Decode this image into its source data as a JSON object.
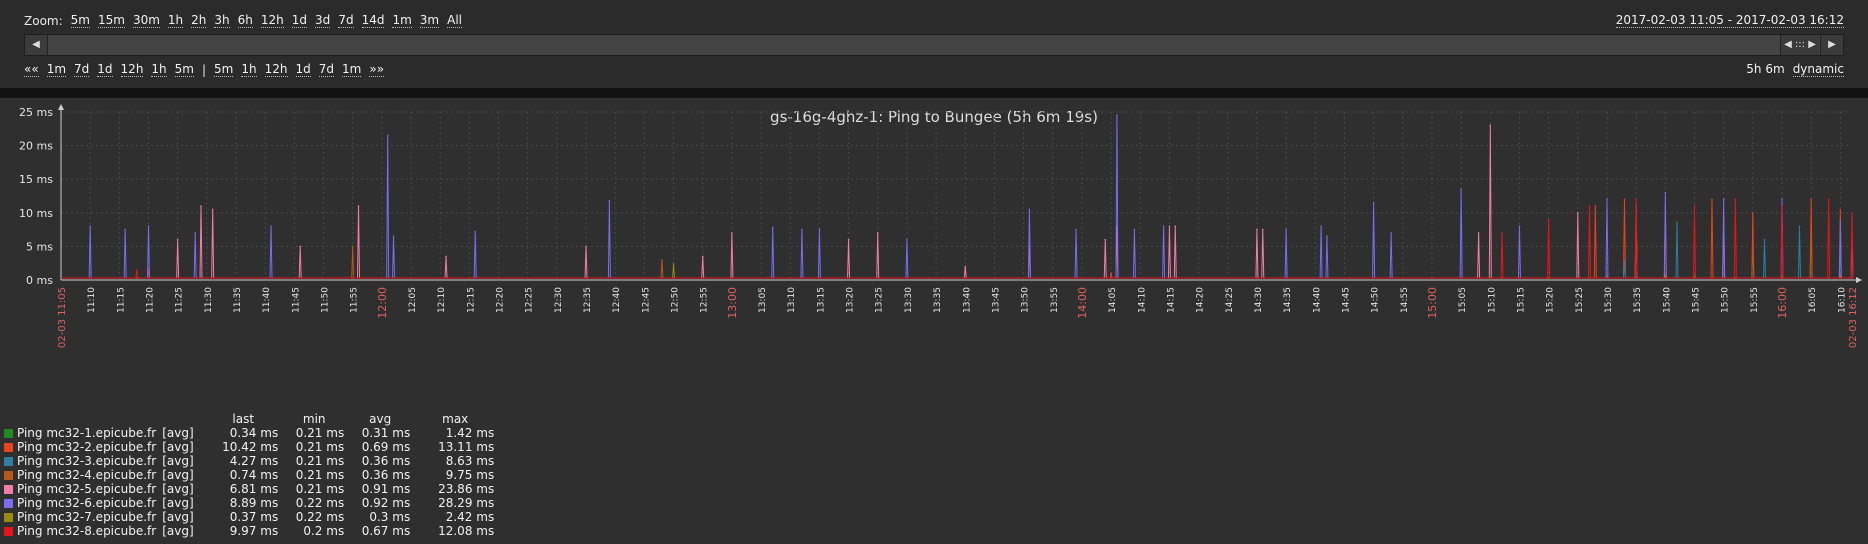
{
  "zoom": {
    "label": "Zoom:",
    "options": [
      "5m",
      "15m",
      "30m",
      "1h",
      "2h",
      "3h",
      "6h",
      "12h",
      "1d",
      "3d",
      "7d",
      "14d",
      "1m",
      "3m",
      "All"
    ]
  },
  "period_text": "2017-02-03 11:05 - 2017-02-03 16:12",
  "scroller": {
    "left_arrow": "◀",
    "right_arrow": "▶",
    "thumb": "◀ ::: ▶"
  },
  "nav": {
    "back_fast": "««",
    "back": [
      "1m",
      "7d",
      "1d",
      "12h",
      "1h",
      "5m"
    ],
    "separator": "|",
    "forward": [
      "5m",
      "1h",
      "12h",
      "1d",
      "7d",
      "1m"
    ],
    "forward_fast": "»»",
    "period_len": "5h 6m",
    "mode": "dynamic"
  },
  "colors": {
    "background": "#2f2f2f",
    "grid": "#4a4a4a",
    "axis_text": "#e6e6e6",
    "hour_text": "#e06060"
  },
  "chart_data": {
    "type": "line",
    "title": "gs-16g-4ghz-1: Ping to Bungee (5h 6m 19s)",
    "y_ticks": [
      "0 ms",
      "5 ms",
      "10 ms",
      "15 ms",
      "20 ms",
      "25 ms"
    ],
    "ylim": [
      0,
      25
    ],
    "x_ticks": [
      "11:10",
      "11:15",
      "11:20",
      "11:25",
      "11:30",
      "11:35",
      "11:40",
      "11:45",
      "11:50",
      "11:55",
      "12:00",
      "12:05",
      "12:10",
      "12:15",
      "12:20",
      "12:25",
      "12:30",
      "12:35",
      "12:40",
      "12:45",
      "12:50",
      "12:55",
      "13:00",
      "13:05",
      "13:10",
      "13:15",
      "13:20",
      "13:25",
      "13:30",
      "13:35",
      "13:40",
      "13:45",
      "13:50",
      "13:55",
      "14:00",
      "14:05",
      "14:10",
      "14:15",
      "14:20",
      "14:25",
      "14:30",
      "14:35",
      "14:40",
      "14:45",
      "14:50",
      "14:55",
      "15:00",
      "15:05",
      "15:10",
      "15:15",
      "15:20",
      "15:25",
      "15:30",
      "15:35",
      "15:40",
      "15:45",
      "15:50",
      "15:55",
      "16:00",
      "16:05",
      "16:10"
    ],
    "x_start_label": "02-03 11:05",
    "x_end_label": "02-03 16:12",
    "grid": true,
    "series": [
      {
        "name": "Ping mc32-1.epicube.fr",
        "color": "#1f8a1f",
        "last": "0.34 ms",
        "min": "0.21 ms",
        "avg": "0.31 ms",
        "max": "1.42 ms",
        "tag": "[avg]",
        "spikes": [
          [
            "15:30",
            0.6
          ],
          [
            "15:45",
            0.6
          ],
          [
            "16:00",
            0.7
          ],
          [
            "16:10",
            0.6
          ]
        ]
      },
      {
        "name": "Ping mc32-2.epicube.fr",
        "color": "#e8441c",
        "last": "10.42 ms",
        "min": "0.21 ms",
        "avg": "0.69 ms",
        "max": "13.11 ms",
        "tag": "[avg]",
        "spikes": [
          [
            "11:20",
            1.5
          ],
          [
            "14:05",
            1
          ],
          [
            "15:28",
            11
          ],
          [
            "15:33",
            12
          ],
          [
            "15:40",
            11
          ],
          [
            "15:48",
            12
          ],
          [
            "15:55",
            10
          ],
          [
            "16:05",
            12
          ],
          [
            "16:10",
            10.4
          ]
        ]
      },
      {
        "name": "Ping mc32-3.epicube.fr",
        "color": "#2f7fa0",
        "last": "4.27 ms",
        "min": "0.21 ms",
        "avg": "0.36 ms",
        "max": "8.63 ms",
        "tag": "[avg]",
        "spikes": [
          [
            "15:33",
            3
          ],
          [
            "15:42",
            8.6
          ],
          [
            "15:57",
            6
          ],
          [
            "16:03",
            8
          ],
          [
            "16:10",
            4.3
          ]
        ]
      },
      {
        "name": "Ping mc32-4.epicube.fr",
        "color": "#b5581a",
        "last": "0.74 ms",
        "min": "0.21 ms",
        "avg": "0.36 ms",
        "max": "9.75 ms",
        "tag": "[avg]",
        "spikes": [
          [
            "11:55",
            5
          ],
          [
            "12:48",
            3
          ],
          [
            "15:35",
            9.7
          ],
          [
            "15:55",
            5
          ],
          [
            "16:05",
            7
          ],
          [
            "16:10",
            0.7
          ]
        ]
      },
      {
        "name": "Ping mc32-5.epicube.fr",
        "color": "#f07fa8",
        "last": "6.81 ms",
        "min": "0.21 ms",
        "avg": "0.91 ms",
        "max": "23.86 ms",
        "tag": "[avg]",
        "spikes": [
          [
            "11:25",
            6
          ],
          [
            "11:29",
            11
          ],
          [
            "11:31",
            10.5
          ],
          [
            "11:46",
            5
          ],
          [
            "11:56",
            11
          ],
          [
            "12:11",
            3.5
          ],
          [
            "12:35",
            5
          ],
          [
            "12:55",
            3.5
          ],
          [
            "13:00",
            7
          ],
          [
            "13:20",
            6
          ],
          [
            "13:25",
            7
          ],
          [
            "13:40",
            2
          ],
          [
            "13:51",
            6.5
          ],
          [
            "14:04",
            6
          ],
          [
            "14:06",
            8
          ],
          [
            "14:15",
            8
          ],
          [
            "14:16",
            8
          ],
          [
            "14:30",
            7.5
          ],
          [
            "14:31",
            7.5
          ],
          [
            "15:08",
            7
          ],
          [
            "15:10",
            23
          ],
          [
            "15:25",
            10
          ],
          [
            "15:35",
            11
          ],
          [
            "15:50",
            9
          ],
          [
            "16:12",
            6.8
          ]
        ]
      },
      {
        "name": "Ping mc32-6.epicube.fr",
        "color": "#7b6cf0",
        "last": "8.89 ms",
        "min": "0.22 ms",
        "avg": "0.92 ms",
        "max": "28.29 ms",
        "tag": "[avg]",
        "spikes": [
          [
            "11:10",
            8
          ],
          [
            "11:16",
            7.5
          ],
          [
            "11:20",
            8
          ],
          [
            "11:28",
            7
          ],
          [
            "11:41",
            8
          ],
          [
            "12:01",
            21.5
          ],
          [
            "12:02",
            6.5
          ],
          [
            "12:16",
            7.2
          ],
          [
            "12:39",
            11.8
          ],
          [
            "13:07",
            7.8
          ],
          [
            "13:12",
            7.5
          ],
          [
            "13:15",
            7.5
          ],
          [
            "13:30",
            6
          ],
          [
            "13:51",
            10.5
          ],
          [
            "13:59",
            7.5
          ],
          [
            "14:06",
            24.5
          ],
          [
            "14:09",
            7.5
          ],
          [
            "14:14",
            8
          ],
          [
            "14:35",
            7.5
          ],
          [
            "14:41",
            8
          ],
          [
            "14:42",
            6.5
          ],
          [
            "14:50",
            11.5
          ],
          [
            "14:53",
            7
          ],
          [
            "15:05",
            13.5
          ],
          [
            "15:15",
            8
          ],
          [
            "15:30",
            12
          ],
          [
            "15:40",
            13
          ],
          [
            "15:50",
            12
          ],
          [
            "16:00",
            12
          ],
          [
            "16:10",
            8.9
          ]
        ]
      },
      {
        "name": "Ping mc32-7.epicube.fr",
        "color": "#9a8a10",
        "last": "0.37 ms",
        "min": "0.22 ms",
        "avg": "0.3 ms",
        "max": "2.42 ms",
        "tag": "[avg]",
        "spikes": [
          [
            "12:50",
            2.4
          ],
          [
            "15:40",
            0.6
          ],
          [
            "16:10",
            0.4
          ]
        ]
      },
      {
        "name": "Ping mc32-8.epicube.fr",
        "color": "#e8141c",
        "last": "9.97 ms",
        "min": "0.2 ms",
        "avg": "0.67 ms",
        "max": "12.08 ms",
        "tag": "[avg]",
        "spikes": [
          [
            "11:18",
            1.5
          ],
          [
            "15:12",
            7
          ],
          [
            "15:20",
            9
          ],
          [
            "15:27",
            11
          ],
          [
            "15:35",
            12
          ],
          [
            "15:45",
            11
          ],
          [
            "15:52",
            12
          ],
          [
            "16:00",
            11
          ],
          [
            "16:08",
            12
          ],
          [
            "16:12",
            10
          ]
        ]
      }
    ]
  },
  "legend_headers": {
    "last": "last",
    "min": "min",
    "avg": "avg",
    "max": "max"
  }
}
